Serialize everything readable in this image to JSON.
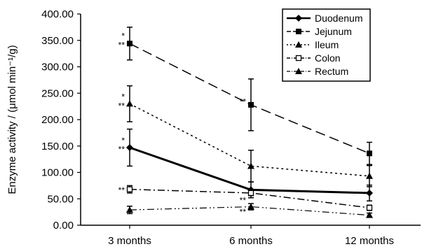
{
  "chart_data": {
    "type": "line",
    "ylabel": "Enzyme activity / (μmol min⁻¹/g)",
    "ylim": [
      0,
      400
    ],
    "ytick_labels": [
      "0.00",
      "50.00",
      "100.00",
      "150.00",
      "200.00",
      "250.00",
      "300.00",
      "350.00",
      "400.00"
    ],
    "yticks": [
      0,
      50,
      100,
      150,
      200,
      250,
      300,
      350,
      400
    ],
    "categories": [
      "3 months",
      "6 months",
      "12 months"
    ],
    "legend_position": "top-right",
    "grid": false,
    "series": [
      {
        "name": "Duodenum",
        "values": [
          147,
          67,
          61
        ],
        "errors": [
          35,
          15,
          15
        ],
        "marker": "diamond",
        "dash": "solid",
        "width": 3,
        "color": "#000000"
      },
      {
        "name": "Jejunum",
        "values": [
          344,
          228,
          136
        ],
        "errors": [
          31,
          49,
          21
        ],
        "marker": "square",
        "dash": "long-dash",
        "width": 1.5,
        "color": "#000000"
      },
      {
        "name": "Ileum",
        "values": [
          230,
          112,
          93
        ],
        "errors": [
          34,
          30,
          20
        ],
        "marker": "triangle",
        "dash": "dotted",
        "width": 1.5,
        "color": "#000000"
      },
      {
        "name": "Colon",
        "values": [
          68,
          61,
          33
        ],
        "errors": [
          7,
          5,
          5
        ],
        "marker": "square-open",
        "dash": "dash-dot",
        "width": 1.5,
        "color": "#000000"
      },
      {
        "name": "Rectum",
        "values": [
          29,
          35,
          19
        ],
        "errors": [
          7,
          6,
          4
        ],
        "marker": "triangle",
        "dash": "dash-dot-dot",
        "width": 1.2,
        "color": "#000000"
      }
    ],
    "annotations": [
      {
        "text": "*",
        "category": 0,
        "value": 358
      },
      {
        "text": "**",
        "category": 0,
        "value": 341
      },
      {
        "text": "*",
        "category": 0,
        "value": 243
      },
      {
        "text": "**",
        "category": 0,
        "value": 226
      },
      {
        "text": "*",
        "category": 0,
        "value": 160
      },
      {
        "text": "**",
        "category": 0,
        "value": 144
      },
      {
        "text": "**",
        "category": 0,
        "value": 66
      },
      {
        "text": "**",
        "category": 1,
        "value": 234
      },
      {
        "text": "**",
        "category": 1,
        "value": 47
      },
      {
        "text": "**",
        "category": 1,
        "value": 25
      }
    ]
  }
}
